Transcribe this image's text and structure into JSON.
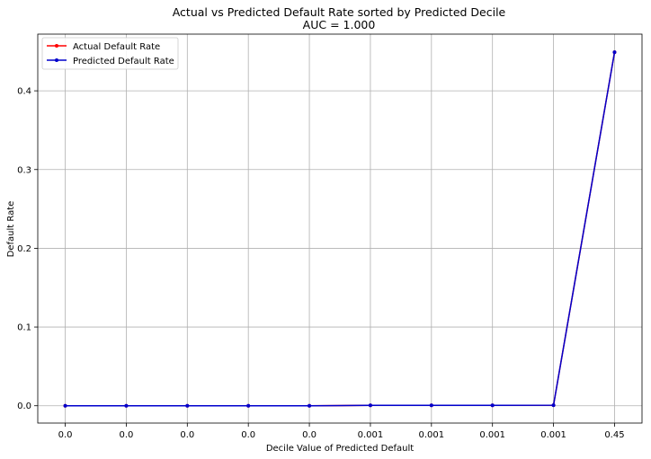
{
  "chart_data": {
    "type": "line",
    "title": "Actual vs Predicted Default Rate sorted by Predicted Decile",
    "subtitle": "AUC = 1.000",
    "xlabel": "Decile Value of Predicted Default",
    "ylabel": "Default Rate",
    "categories": [
      "0.0",
      "0.0",
      "0.0",
      "0.0",
      "0.0",
      "0.001",
      "0.001",
      "0.001",
      "0.001",
      "0.45"
    ],
    "ylim": [
      -0.022,
      0.472
    ],
    "yticks": [
      0.0,
      0.1,
      0.2,
      0.3,
      0.4
    ],
    "ytick_labels": [
      "0.0",
      "0.1",
      "0.2",
      "0.3",
      "0.4"
    ],
    "grid": true,
    "legend_position": "top-left",
    "series": [
      {
        "name": "Actual Default Rate",
        "color": "#ff0000",
        "values": [
          0.0,
          0.0,
          0.0,
          0.0,
          0.0,
          0.0005,
          0.0005,
          0.0005,
          0.0007,
          0.449
        ]
      },
      {
        "name": "Predicted Default Rate",
        "color": "#0000cc",
        "values": [
          0.0,
          0.0,
          0.0,
          0.0,
          0.0,
          0.0005,
          0.0005,
          0.0005,
          0.0007,
          0.449
        ]
      }
    ]
  }
}
